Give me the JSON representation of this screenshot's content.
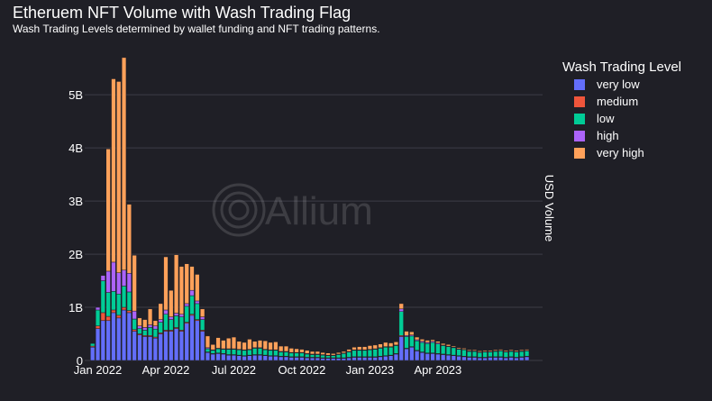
{
  "chart_data": {
    "type": "bar",
    "stacked": true,
    "title": "Etheruem NFT Volume with Wash Trading Flag",
    "subtitle": "Wash Trading Levels determined by wallet funding and NFT trading patterns.",
    "watermark": "Allium",
    "xlabel": "",
    "ylabel": "USD Volume",
    "ylim": [
      0,
      5800000000
    ],
    "y_ticks": [
      {
        "value": 0,
        "label": "0"
      },
      {
        "value": 1000000000,
        "label": "1B"
      },
      {
        "value": 2000000000,
        "label": "2B"
      },
      {
        "value": 3000000000,
        "label": "3B"
      },
      {
        "value": 4000000000,
        "label": "4B"
      },
      {
        "value": 5000000000,
        "label": "5B"
      }
    ],
    "x_ticks": [
      {
        "week": 1,
        "label": "Jan 2022"
      },
      {
        "week": 14,
        "label": "Apr 2022"
      },
      {
        "week": 27,
        "label": "Jul 2022"
      },
      {
        "week": 40,
        "label": "Oct 2022"
      },
      {
        "week": 53,
        "label": "Jan 2023"
      },
      {
        "week": 66,
        "label": "Apr 2023"
      }
    ],
    "week_range": [
      -1.5,
      86
    ],
    "legend_title": "Wash Trading Level",
    "legend_position": "right",
    "grid": true,
    "colors": {
      "very low": "#636efa",
      "medium": "#ef553b",
      "low": "#00cc96",
      "high": "#ab63fa",
      "very high": "#ffa15a"
    },
    "series": [
      {
        "name": "very low",
        "color": "#636efa",
        "values": [
          0.25,
          0.6,
          0.75,
          0.75,
          0.9,
          0.8,
          0.95,
          0.9,
          0.55,
          0.48,
          0.45,
          0.45,
          0.42,
          0.5,
          0.55,
          0.55,
          0.6,
          0.55,
          0.7,
          0.85,
          0.75,
          0.55,
          0.15,
          0.12,
          0.13,
          0.12,
          0.1,
          0.1,
          0.09,
          0.08,
          0.09,
          0.1,
          0.1,
          0.09,
          0.08,
          0.08,
          0.07,
          0.07,
          0.06,
          0.06,
          0.06,
          0.05,
          0.05,
          0.05,
          0.04,
          0.04,
          0.04,
          0.04,
          0.04,
          0.05,
          0.06,
          0.06,
          0.06,
          0.06,
          0.06,
          0.07,
          0.08,
          0.09,
          0.12,
          0.45,
          0.22,
          0.25,
          0.18,
          0.15,
          0.13,
          0.13,
          0.12,
          0.11,
          0.1,
          0.09,
          0.08,
          0.07,
          0.06,
          0.06,
          0.05,
          0.05,
          0.06,
          0.06,
          0.06,
          0.05,
          0.06,
          0.05,
          0.06,
          0.07
        ]
      },
      {
        "name": "medium",
        "color": "#ef553b",
        "values": [
          0.02,
          0.05,
          0.15,
          0.08,
          0.05,
          0.05,
          0.05,
          0.04,
          0.03,
          0.02,
          0.02,
          0.02,
          0.02,
          0.02,
          0.02,
          0.02,
          0.02,
          0.02,
          0.02,
          0.02,
          0.02,
          0.02,
          0.01,
          0.01,
          0.01,
          0.01,
          0.01,
          0.01,
          0.01,
          0.01,
          0.01,
          0.01,
          0.01,
          0.01,
          0.01,
          0.01,
          0.01,
          0.01,
          0.01,
          0.01,
          0.01,
          0.01,
          0.01,
          0.01,
          0.01,
          0.01,
          0.01,
          0.01,
          0.01,
          0.01,
          0.01,
          0.01,
          0.01,
          0.01,
          0.01,
          0.01,
          0.01,
          0.01,
          0.01,
          0.02,
          0.01,
          0.01,
          0.01,
          0.01,
          0.01,
          0.01,
          0.01,
          0.01,
          0.01,
          0.01,
          0.01,
          0.01,
          0.01,
          0.01,
          0.01,
          0.01,
          0.01,
          0.01,
          0.01,
          0.01,
          0.01,
          0.01,
          0.01,
          0.01
        ]
      },
      {
        "name": "low",
        "color": "#00cc96",
        "values": [
          0.05,
          0.3,
          0.6,
          0.45,
          0.35,
          0.4,
          0.4,
          0.35,
          0.2,
          0.1,
          0.1,
          0.15,
          0.15,
          0.2,
          0.3,
          0.2,
          0.22,
          0.25,
          0.3,
          0.35,
          0.3,
          0.2,
          0.06,
          0.06,
          0.08,
          0.08,
          0.1,
          0.1,
          0.1,
          0.1,
          0.1,
          0.12,
          0.12,
          0.1,
          0.1,
          0.1,
          0.08,
          0.08,
          0.07,
          0.07,
          0.07,
          0.06,
          0.05,
          0.05,
          0.05,
          0.04,
          0.04,
          0.06,
          0.08,
          0.1,
          0.12,
          0.12,
          0.12,
          0.13,
          0.14,
          0.15,
          0.16,
          0.15,
          0.15,
          0.45,
          0.22,
          0.2,
          0.18,
          0.18,
          0.18,
          0.2,
          0.18,
          0.16,
          0.15,
          0.14,
          0.12,
          0.12,
          0.1,
          0.1,
          0.09,
          0.1,
          0.09,
          0.1,
          0.11,
          0.1,
          0.1,
          0.1,
          0.1,
          0.1
        ]
      },
      {
        "name": "high",
        "color": "#ab63fa",
        "values": [
          0,
          0.05,
          0.1,
          0.4,
          0.55,
          0.4,
          0.3,
          0.35,
          0.15,
          0.05,
          0.05,
          0.05,
          0.06,
          0.05,
          0.08,
          0.05,
          0.05,
          0.05,
          0.05,
          0.1,
          0.05,
          0.05,
          0.02,
          0.01,
          0.01,
          0.01,
          0.01,
          0.01,
          0.01,
          0.01,
          0.01,
          0.01,
          0.01,
          0.01,
          0.01,
          0.01,
          0.01,
          0.01,
          0.01,
          0.01,
          0.01,
          0.01,
          0.01,
          0.01,
          0.01,
          0.01,
          0.01,
          0.01,
          0.01,
          0.01,
          0.01,
          0.01,
          0.01,
          0.01,
          0.01,
          0.01,
          0.01,
          0.01,
          0.01,
          0.05,
          0.02,
          0.02,
          0.02,
          0.02,
          0.02,
          0.02,
          0.02,
          0.01,
          0.01,
          0.01,
          0.01,
          0.01,
          0.01,
          0.01,
          0.01,
          0.01,
          0.01,
          0.01,
          0.01,
          0.01,
          0.01,
          0.01,
          0.01,
          0.01
        ]
      },
      {
        "name": "very high",
        "color": "#ffa15a",
        "values": [
          0,
          0,
          0,
          2.3,
          3.45,
          3.6,
          4,
          1.3,
          1.05,
          0.15,
          0.15,
          0.3,
          0.1,
          0.3,
          1,
          0.5,
          1.1,
          0.9,
          0.75,
          0.45,
          0.5,
          0.15,
          0.22,
          0.1,
          0.2,
          0.16,
          0.2,
          0.22,
          0.15,
          0.14,
          0.19,
          0.12,
          0.14,
          0.16,
          0.14,
          0.15,
          0.1,
          0.1,
          0.08,
          0.07,
          0.06,
          0.06,
          0.05,
          0.05,
          0.04,
          0.04,
          0.03,
          0.03,
          0.03,
          0.04,
          0.05,
          0.06,
          0.06,
          0.07,
          0.07,
          0.07,
          0.08,
          0.07,
          0.06,
          0.1,
          0.08,
          0.06,
          0.05,
          0.04,
          0.04,
          0.03,
          0.03,
          0.03,
          0.03,
          0.02,
          0.02,
          0.02,
          0.02,
          0.02,
          0.02,
          0.02,
          0.02,
          0.02,
          0.02,
          0.02,
          0.02,
          0.02,
          0.02,
          0.02
        ]
      }
    ],
    "value_unit_note_scale": 1000000000
  }
}
